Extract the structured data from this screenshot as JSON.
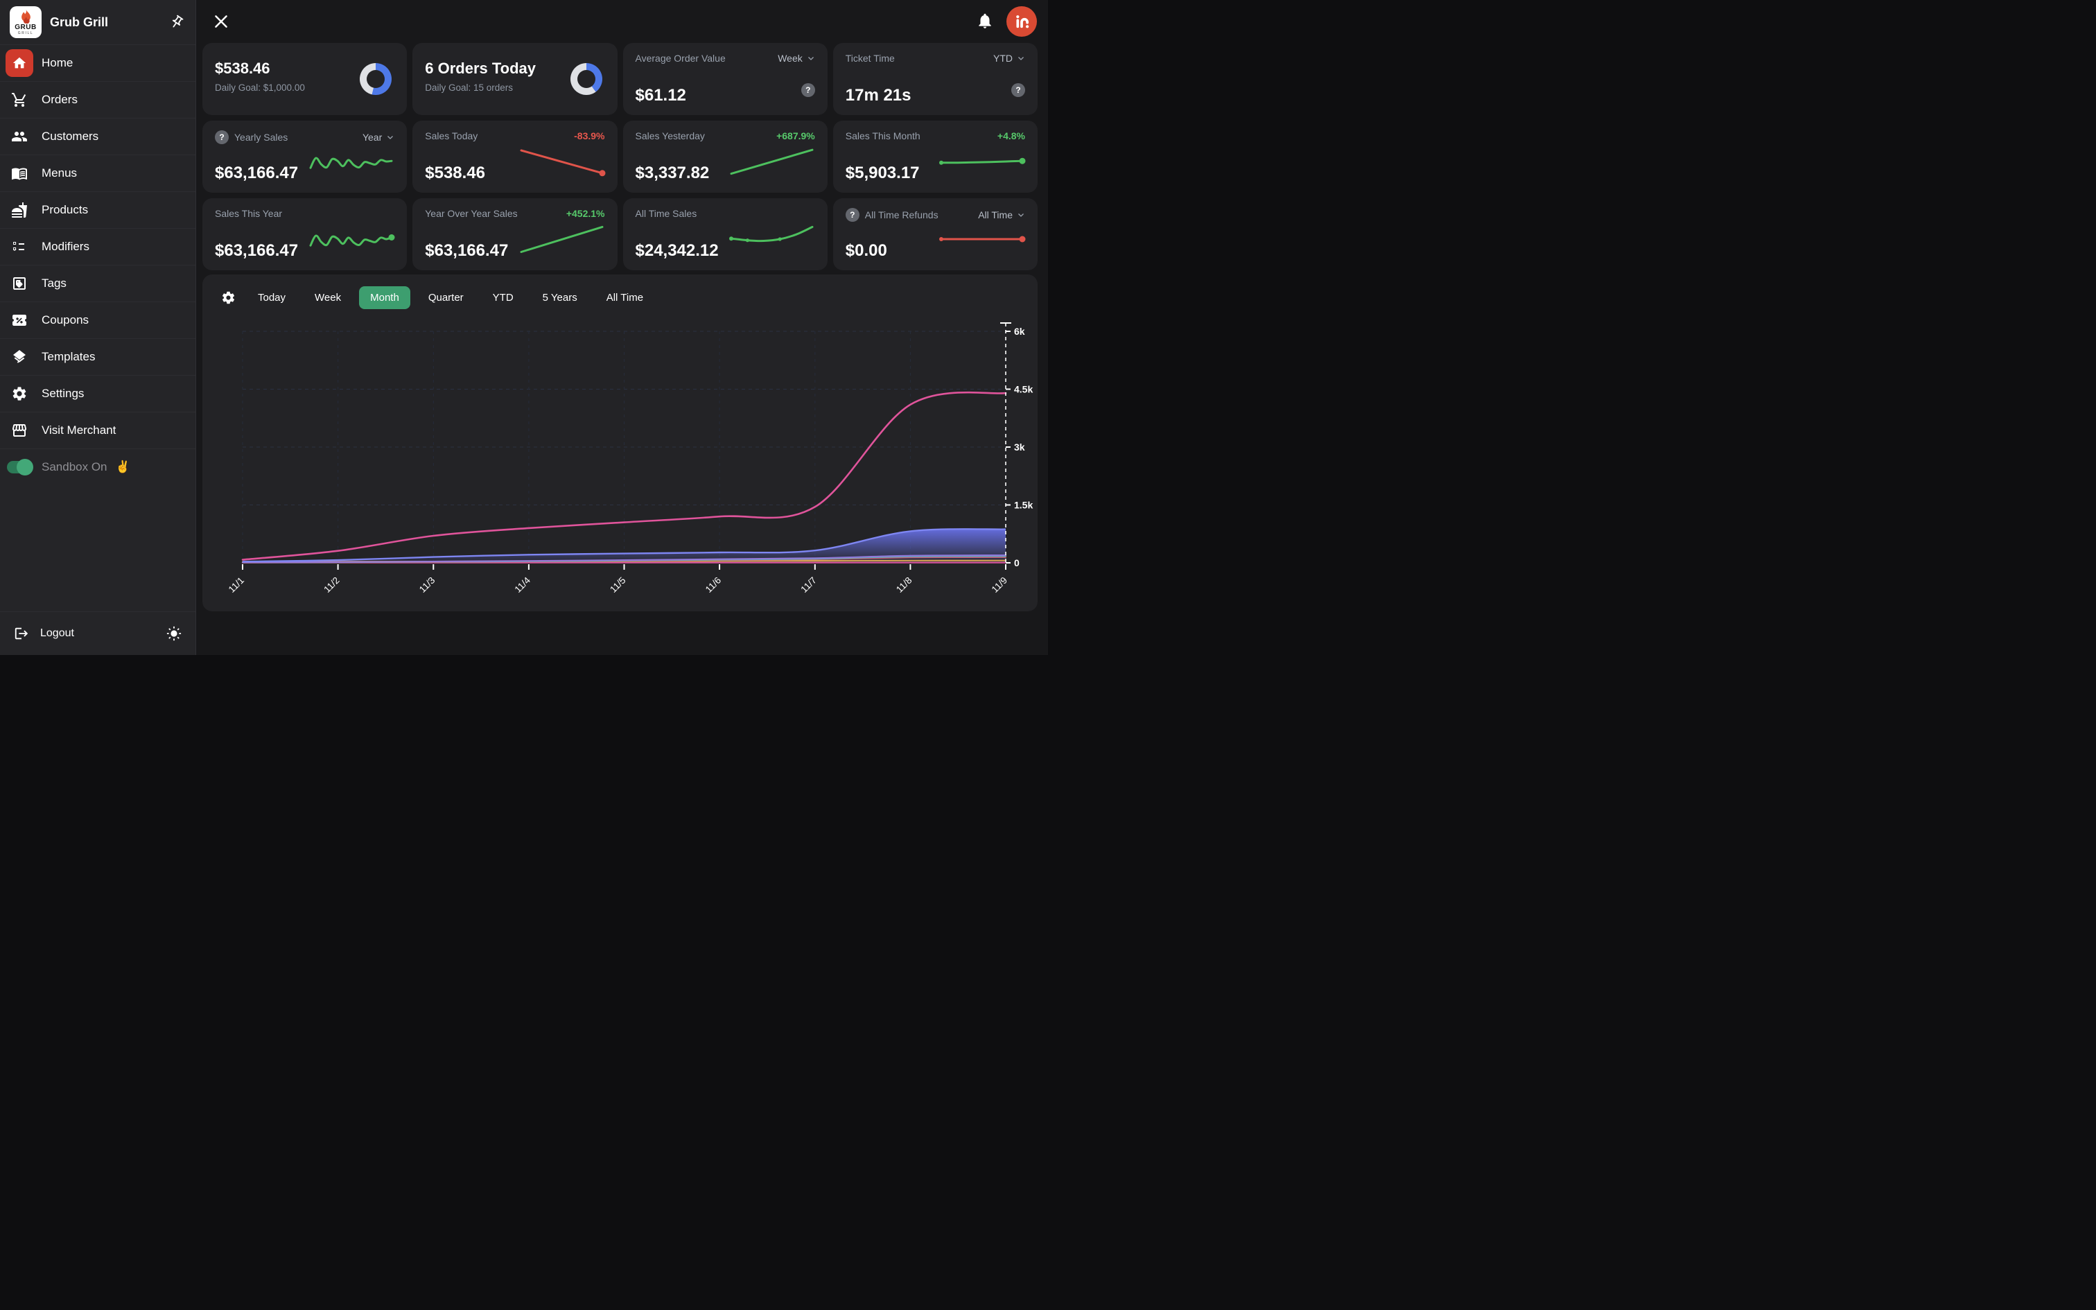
{
  "brand": {
    "logo_line1": "GRUB",
    "logo_line2": "GRILL",
    "title": "Grub Grill"
  },
  "sidebar": {
    "items": [
      {
        "label": "Home"
      },
      {
        "label": "Orders"
      },
      {
        "label": "Customers"
      },
      {
        "label": "Menus"
      },
      {
        "label": "Products"
      },
      {
        "label": "Modifiers"
      },
      {
        "label": "Tags"
      },
      {
        "label": "Coupons"
      },
      {
        "label": "Templates"
      },
      {
        "label": "Settings"
      },
      {
        "label": "Visit Merchant"
      }
    ],
    "sandbox_label": "Sandbox On",
    "sandbox_emoji": "✌",
    "sandbox_on": true,
    "logout_label": "Logout"
  },
  "cards": {
    "daily_sales_goal": {
      "value": "$538.46",
      "goal": "Daily Goal: $1,000.00",
      "pct": 53.8
    },
    "daily_orders_goal": {
      "value": "6 Orders Today",
      "goal": "Daily Goal: 15 orders",
      "pct": 40
    },
    "aov": {
      "title": "Average Order Value",
      "range": "Week",
      "value": "$61.12"
    },
    "ticket_time": {
      "title": "Ticket Time",
      "range": "YTD",
      "value": "17m 21s"
    },
    "yearly_sales": {
      "title": "Yearly Sales",
      "range": "Year",
      "value": "$63,166.47"
    },
    "sales_today": {
      "title": "Sales Today",
      "delta": "-83.9%",
      "value": "$538.46"
    },
    "sales_yesterday": {
      "title": "Sales Yesterday",
      "delta": "+687.9%",
      "value": "$3,337.82"
    },
    "sales_this_month": {
      "title": "Sales This Month",
      "delta": "+4.8%",
      "value": "$5,903.17"
    },
    "sales_this_year": {
      "title": "Sales This Year",
      "value": "$63,166.47"
    },
    "yoy_sales": {
      "title": "Year Over Year Sales",
      "delta": "+452.1%",
      "value": "$63,166.47"
    },
    "all_time_sales": {
      "title": "All Time Sales",
      "value": "$24,342.12"
    },
    "all_time_refunds": {
      "title": "All Time Refunds",
      "range": "All Time",
      "value": "$0.00"
    }
  },
  "sparks": {
    "yearly_sales": {
      "color": "#4dc05e",
      "values": [
        28,
        62,
        40,
        30,
        58,
        52,
        34,
        55,
        38,
        30,
        48,
        44,
        40,
        55,
        50,
        52
      ]
    },
    "sales_today": {
      "color": "#e0544a",
      "values": [
        88,
        10
      ],
      "end_dot": true
    },
    "sales_yesterday": {
      "color": "#4dc05e",
      "values": [
        8,
        90
      ]
    },
    "sales_this_month": {
      "color": "#4dc05e",
      "values": [
        46,
        46,
        47,
        48,
        50,
        52
      ],
      "end_dot": true,
      "start_cap": true
    },
    "sales_this_year": {
      "color": "#4dc05e",
      "values": [
        28,
        62,
        40,
        30,
        58,
        52,
        34,
        55,
        38,
        30,
        48,
        44,
        40,
        55,
        50,
        56
      ],
      "end_dot": true
    },
    "yoy_sales": {
      "color": "#4dc05e",
      "values": [
        6,
        92
      ]
    },
    "all_time_sales": {
      "color": "#4dc05e",
      "values": [
        52,
        46,
        44,
        50,
        66,
        92
      ],
      "markers": [
        1,
        3
      ],
      "start_cap": true
    },
    "all_time_refunds": {
      "color": "#e0544a",
      "values": [
        50,
        50
      ],
      "end_dot": true,
      "start_cap": true
    }
  },
  "tabs": {
    "items": [
      "Today",
      "Week",
      "Month",
      "Quarter",
      "YTD",
      "5 Years",
      "All Time"
    ],
    "active_index": 2
  },
  "colors": {
    "accent_red": "#cf3a2c",
    "avatar_red": "#d94a33",
    "tab_active": "#3d9e6f",
    "donut_blue": "#4e79e8",
    "donut_track": "#dfe1e5",
    "green": "#57c96b",
    "red_delta": "#e8574d"
  },
  "chart_data": {
    "type": "line",
    "x": [
      "11/1",
      "11/2",
      "11/3",
      "11/4",
      "11/5",
      "11/6",
      "11/7",
      "11/8",
      "11/9"
    ],
    "ylim": [
      0,
      6000
    ],
    "yticks": [
      0,
      1500,
      3000,
      4500,
      6000
    ],
    "ytick_labels": [
      "0",
      "1.5k",
      "3k",
      "4.5k",
      "6k"
    ],
    "grid": "dashed",
    "cursor_x": "11/9",
    "series": [
      {
        "name": "primary-sales-pink",
        "type": "line",
        "color": "#e0549b",
        "values": [
          80,
          310,
          700,
          900,
          1050,
          1200,
          1450,
          4100,
          4400
        ]
      },
      {
        "name": "orders-indigo-area",
        "type": "area",
        "color": "#6b74ea",
        "values": [
          30,
          70,
          150,
          210,
          240,
          270,
          320,
          820,
          870
        ]
      },
      {
        "name": "series-purple",
        "type": "line",
        "color": "#9b79d4",
        "values": [
          12,
          20,
          35,
          50,
          70,
          95,
          120,
          185,
          195
        ]
      },
      {
        "name": "series-teal",
        "type": "line",
        "color": "#4fc0a8",
        "values": [
          10,
          16,
          28,
          42,
          60,
          82,
          105,
          165,
          175
        ]
      },
      {
        "name": "series-red",
        "type": "line",
        "color": "#e05656",
        "values": [
          8,
          14,
          22,
          36,
          52,
          72,
          92,
          140,
          148
        ]
      },
      {
        "name": "series-amber",
        "type": "line",
        "color": "#e2a93e",
        "values": [
          26,
          30,
          34,
          40,
          44,
          48,
          52,
          58,
          60
        ]
      },
      {
        "name": "series-magenta-flat",
        "type": "line",
        "color": "#e0549b",
        "values": [
          6,
          6,
          6,
          6,
          6,
          6,
          6,
          6,
          6
        ]
      }
    ]
  }
}
